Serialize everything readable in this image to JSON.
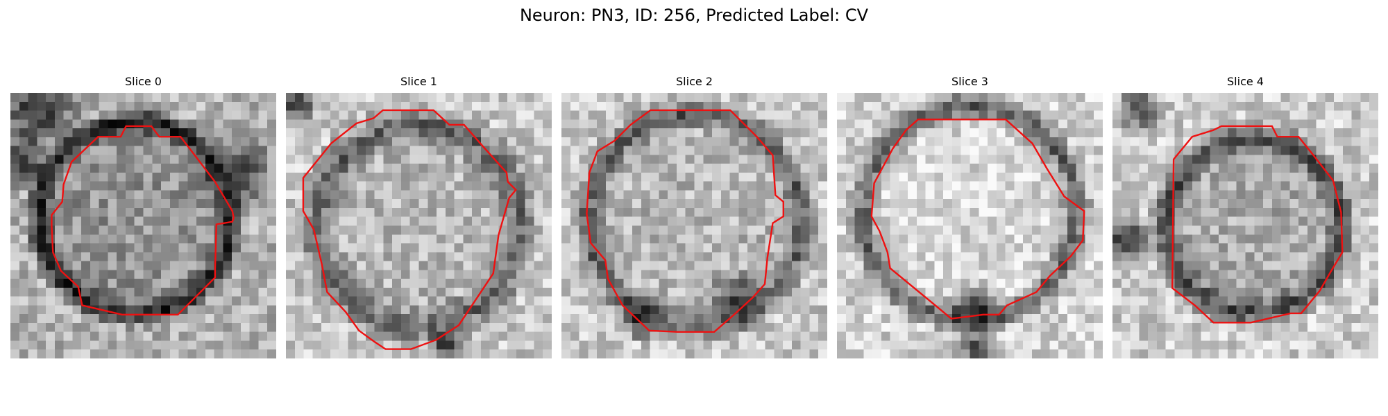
{
  "figure": {
    "title": "Neuron: PN3, ID: 256, Predicted Label: CV"
  },
  "colors": {
    "outline": "#ee1111",
    "background": "#ffffff"
  },
  "panels": [
    {
      "title": "Slice 0"
    },
    {
      "title": "Slice 1"
    },
    {
      "title": "Slice 2"
    },
    {
      "title": "Slice 3"
    },
    {
      "title": "Slice 4"
    }
  ]
}
